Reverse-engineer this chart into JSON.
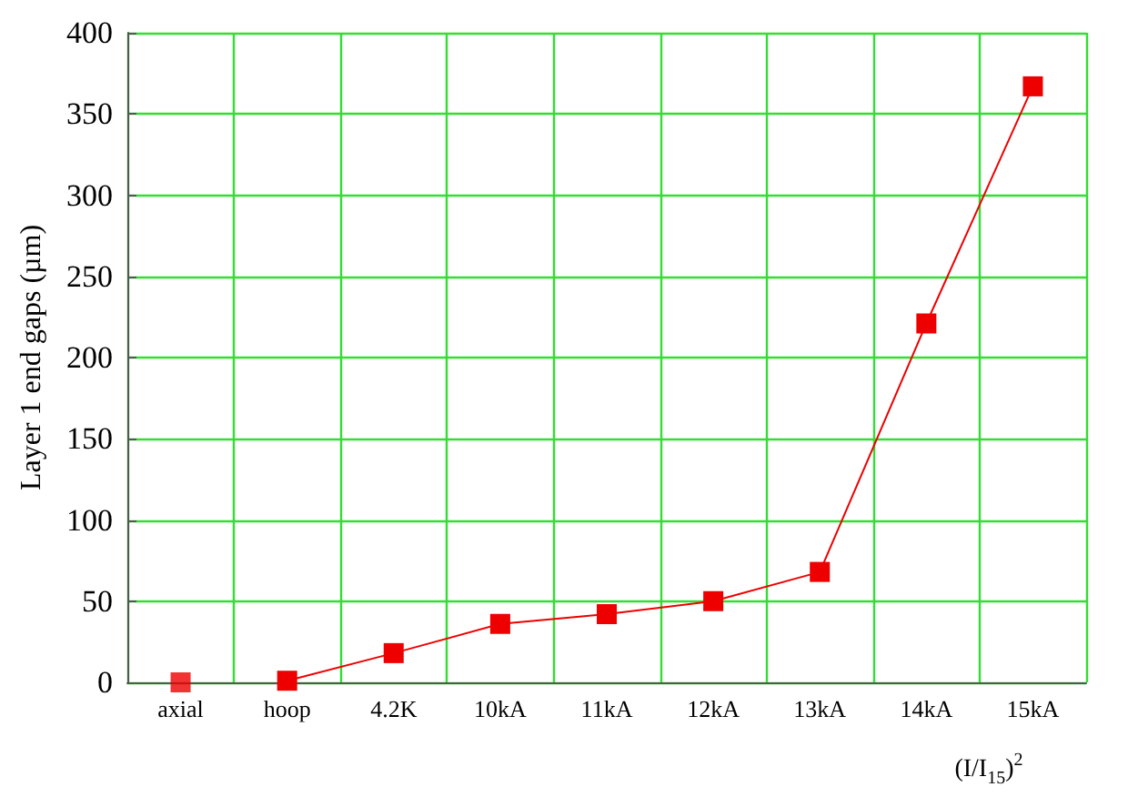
{
  "chart_data": {
    "type": "line",
    "xlabel": "(I/I$_{15}$)$^{2}$",
    "ylabel": "Layer 1 end gaps (µm)",
    "categories": [
      "axial",
      "hoop",
      "4.2K",
      "10kA",
      "11kA",
      "12kA",
      "13kA",
      "14kA",
      "15kA"
    ],
    "ylim": [
      0,
      400
    ],
    "yticks": [
      0,
      50,
      100,
      150,
      200,
      250,
      300,
      350,
      400
    ],
    "grid": true,
    "marker": "square",
    "line_style": "solid",
    "series": [
      {
        "type": "scatter",
        "color": "#ee0000",
        "values": [
          0,
          null,
          null,
          null,
          null,
          null,
          null,
          null,
          null
        ]
      },
      {
        "color": "#ee0000",
        "values": [
          null,
          1,
          18,
          36,
          42,
          50,
          68,
          221,
          367
        ]
      }
    ]
  }
}
